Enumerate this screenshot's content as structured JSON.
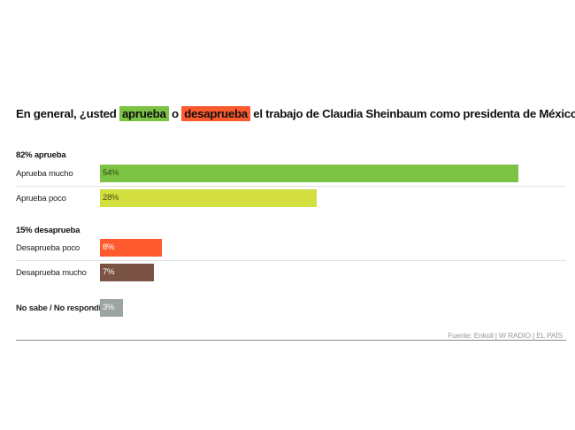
{
  "chart_data": {
    "type": "bar",
    "orientation": "horizontal",
    "title_parts": [
      {
        "text": "En general, ¿usted ",
        "highlight": null
      },
      {
        "text": "aprueba",
        "highlight": "#7cc243"
      },
      {
        "text": " o ",
        "highlight": null
      },
      {
        "text": "desaprueba",
        "highlight": "#fe5a2e"
      },
      {
        "text": " el trabajo de Claudia Sheinbaum como presidenta de México?",
        "highlight": null
      }
    ],
    "xlim": [
      0,
      100
    ],
    "groups": [
      {
        "label": "82% aprueba",
        "rows": [
          {
            "label": "Aprueba mucho",
            "value": 54,
            "value_label": "54%",
            "color": "#7cc243",
            "label_color": "#2c4a12"
          },
          {
            "label": "Aprueba poco",
            "value": 28,
            "value_label": "28%",
            "color": "#d3df3f",
            "label_color": "#4a4a10"
          }
        ]
      },
      {
        "label": "15% desaprueba",
        "rows": [
          {
            "label": "Desaprueba poco",
            "value": 8,
            "value_label": "8%",
            "color": "#fe5a2e",
            "label_color": "#ffffff"
          },
          {
            "label": "Desaprueba mucho",
            "value": 7,
            "value_label": "7%",
            "color": "#7a5344",
            "label_color": "#ffffff"
          }
        ]
      },
      {
        "label": "",
        "rows": [
          {
            "label": "No sabe / No respondió",
            "value": 3,
            "value_label": "3%",
            "color": "#9da5a3",
            "label_color": "#ffffff",
            "bold_label": true
          }
        ]
      }
    ],
    "source": "Fuente: Enkoll | W RADIO | EL PAÍS"
  }
}
